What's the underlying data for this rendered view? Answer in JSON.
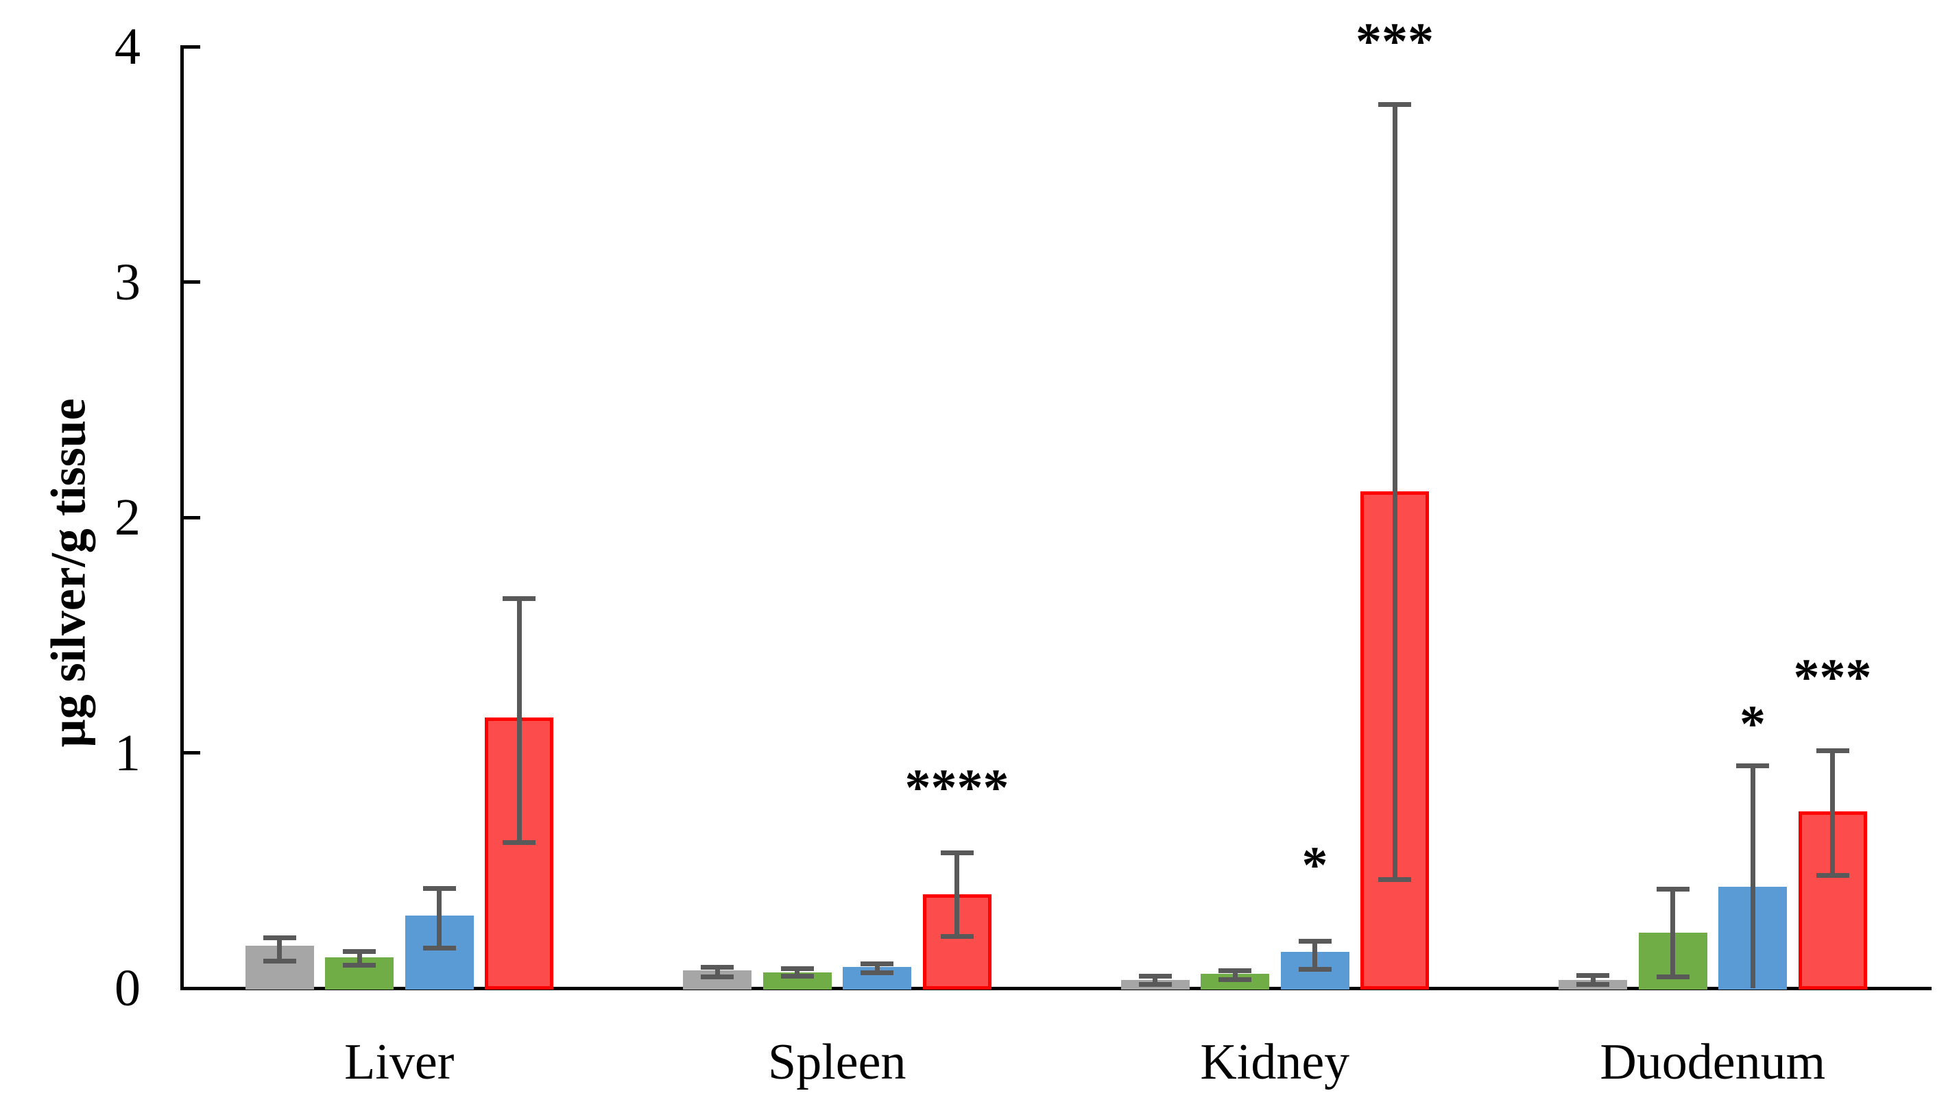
{
  "chart_data": {
    "type": "bar",
    "title": "",
    "xlabel": "",
    "ylabel": "µg silver/g tissue",
    "ylim": [
      0,
      4
    ],
    "yticks": [
      0,
      1,
      2,
      3,
      4
    ],
    "grid": false,
    "legend_position": "none",
    "error_bar_color": "#595959",
    "categories": [
      "Liver",
      "Spleen",
      "Kidney",
      "Duodenum"
    ],
    "series": [
      {
        "name": "gray",
        "color": "#A6A6A6",
        "values": [
          0.18,
          0.075,
          0.035,
          0.035
        ],
        "error_low": [
          0.115,
          0.048,
          0.015,
          0.015
        ],
        "error_high": [
          0.215,
          0.09,
          0.05,
          0.055
        ]
      },
      {
        "name": "green",
        "color": "#70AD47",
        "values": [
          0.13,
          0.067,
          0.06,
          0.235
        ],
        "error_low": [
          0.097,
          0.05,
          0.035,
          0.048
        ],
        "error_high": [
          0.155,
          0.083,
          0.073,
          0.42
        ]
      },
      {
        "name": "blue",
        "color": "#5B9BD5",
        "values": [
          0.31,
          0.09,
          0.155,
          0.43
        ],
        "error_low": [
          0.17,
          0.065,
          0.08,
          0.0
        ],
        "error_high": [
          0.425,
          0.103,
          0.2,
          0.945
        ]
      },
      {
        "name": "red",
        "color": "#FC4C4C",
        "border_color": "#FF0000",
        "values": [
          1.15,
          0.4,
          2.11,
          0.75
        ],
        "error_low": [
          0.62,
          0.22,
          0.46,
          0.48
        ],
        "error_high": [
          1.655,
          0.575,
          3.755,
          1.01
        ]
      }
    ],
    "annotations": [
      {
        "category": "Spleen",
        "series": "red",
        "text": "****",
        "y": 0.85
      },
      {
        "category": "Kidney",
        "series": "blue",
        "text": "*",
        "y": 0.52
      },
      {
        "category": "Kidney",
        "series": "red",
        "text": "***",
        "y": 4.02
      },
      {
        "category": "Duodenum",
        "series": "blue",
        "text": "*",
        "y": 1.12
      },
      {
        "category": "Duodenum",
        "series": "red",
        "text": "***",
        "y": 1.32
      }
    ]
  }
}
